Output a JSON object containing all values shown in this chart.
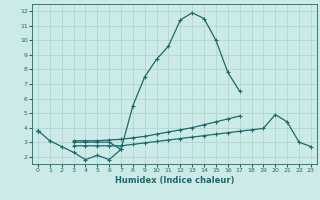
{
  "title": "",
  "xlabel": "Humidex (Indice chaleur)",
  "x_values": [
    0,
    1,
    2,
    3,
    4,
    5,
    6,
    7,
    8,
    9,
    10,
    11,
    12,
    13,
    14,
    15,
    16,
    17,
    18,
    19,
    20,
    21,
    22,
    23
  ],
  "line1_y": [
    3.8,
    3.1,
    2.7,
    2.3,
    1.8,
    2.1,
    1.8,
    2.5,
    null,
    null,
    null,
    null,
    null,
    null,
    null,
    null,
    null,
    null,
    null,
    null,
    null,
    null,
    null,
    null
  ],
  "line2_y": [
    3.8,
    null,
    null,
    3.0,
    3.0,
    3.0,
    3.0,
    2.5,
    5.5,
    7.5,
    8.7,
    9.6,
    11.4,
    11.9,
    11.5,
    10.0,
    7.8,
    6.5,
    null,
    null,
    null,
    null,
    null,
    null
  ],
  "line3_y": [
    3.8,
    null,
    null,
    3.1,
    3.1,
    3.1,
    3.15,
    3.2,
    3.3,
    3.4,
    3.55,
    3.7,
    3.85,
    4.0,
    4.2,
    4.4,
    4.6,
    4.8,
    null,
    null,
    null,
    null,
    null,
    null
  ],
  "line4_y": [
    3.8,
    null,
    null,
    2.75,
    2.75,
    2.75,
    2.75,
    2.75,
    2.85,
    2.95,
    3.05,
    3.15,
    3.25,
    3.35,
    3.45,
    3.55,
    3.65,
    3.75,
    3.85,
    3.95,
    4.9,
    4.4,
    3.0,
    2.7
  ],
  "bg_color": "#cceae7",
  "line_color": "#1a6b6b",
  "grid_color": "#aad4d0",
  "xlim": [
    -0.5,
    23.5
  ],
  "ylim": [
    1.5,
    12.5
  ],
  "yticks": [
    2,
    3,
    4,
    5,
    6,
    7,
    8,
    9,
    10,
    11,
    12
  ],
  "xticks": [
    0,
    1,
    2,
    3,
    4,
    5,
    6,
    7,
    8,
    9,
    10,
    11,
    12,
    13,
    14,
    15,
    16,
    17,
    18,
    19,
    20,
    21,
    22,
    23
  ]
}
